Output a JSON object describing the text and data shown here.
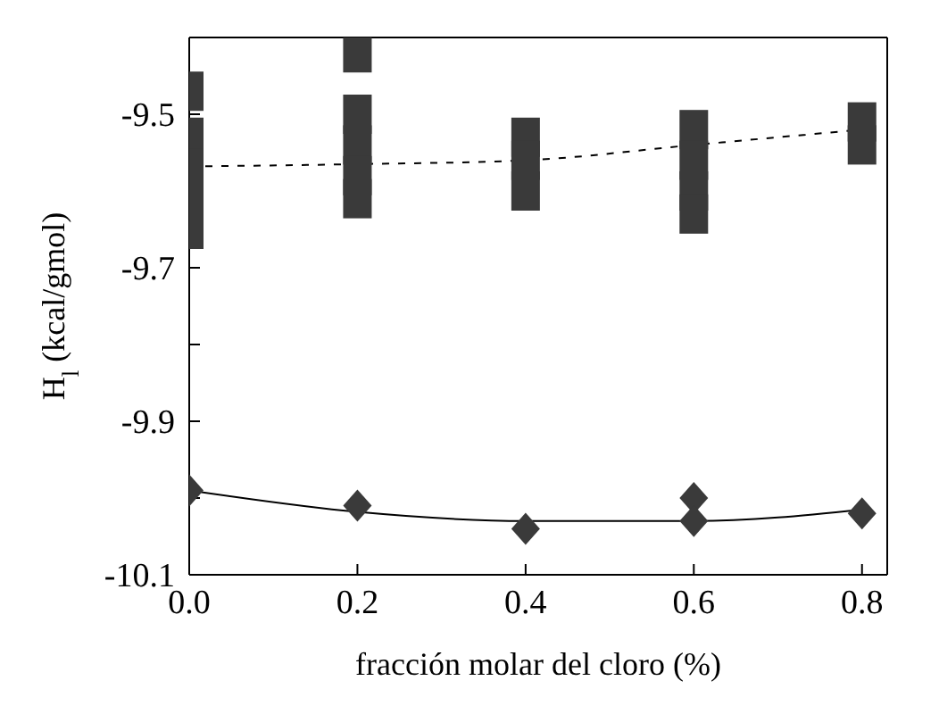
{
  "chart_data": {
    "type": "scatter",
    "xlabel": "fracción molar del cloro (%)",
    "ylabel": "H$_{l}$ (kcal/gmol)",
    "xlim": [
      0,
      0.83
    ],
    "xticks": [
      {
        "value": 0,
        "label": "0.0"
      },
      0.2,
      0.4,
      0.6,
      0.8
    ],
    "ylim": [
      -10.1,
      -9.4
    ],
    "yticks": [
      {
        "value": -10.1,
        "label": "-10.1"
      },
      {
        "value": -10.0,
        "label": null
      },
      {
        "value": -9.9,
        "label": "-9.9"
      },
      {
        "value": -9.8,
        "label": null
      },
      {
        "value": -9.7,
        "label": "-9.7"
      },
      {
        "value": -9.6,
        "label": null
      },
      {
        "value": -9.5,
        "label": "-9.5"
      }
    ],
    "series": [
      {
        "marker": "square",
        "color": "#3a3a3a",
        "x": [
          0,
          0,
          0,
          0,
          0,
          0.2,
          0.2,
          0.2,
          0.2,
          0.2,
          0.4,
          0.4,
          0.4,
          0.6,
          0.6,
          0.6,
          0.6,
          0.8,
          0.8
        ],
        "values": [
          -9.47,
          -9.53,
          -9.57,
          -9.61,
          -9.65,
          -9.42,
          -9.5,
          -9.54,
          -9.58,
          -9.61,
          -9.53,
          -9.56,
          -9.6,
          -9.52,
          -9.56,
          -9.6,
          -9.63,
          -9.51,
          -9.54
        ]
      },
      {
        "type": "line",
        "marker": "none",
        "line_style": "dashed",
        "color": "#000000",
        "x": [
          0,
          0.2,
          0.4,
          0.6,
          0.8
        ],
        "values": [
          -9.568,
          -9.565,
          -9.56,
          -9.54,
          -9.52
        ]
      },
      {
        "marker": "diamond",
        "color": "#3a3a3a",
        "x": [
          0,
          0.2,
          0.4,
          0.6,
          0.6,
          0.8
        ],
        "values": [
          -9.99,
          -10.01,
          -10.04,
          -10.0,
          -10.03,
          -10.02
        ]
      },
      {
        "type": "line",
        "marker": "none",
        "line_style": "solid",
        "color": "#000000",
        "x": [
          0,
          0.2,
          0.4,
          0.6,
          0.8
        ],
        "values": [
          -9.99,
          -10.018,
          -10.03,
          -10.03,
          -10.015
        ]
      }
    ]
  }
}
